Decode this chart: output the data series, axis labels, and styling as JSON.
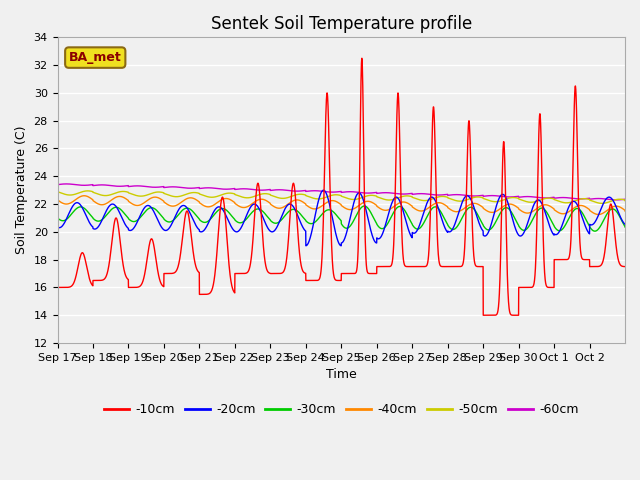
{
  "title": "Sentek Soil Temperature profile",
  "xlabel": "Time",
  "ylabel": "Soil Temperature (C)",
  "ylim": [
    12,
    34
  ],
  "yticks": [
    12,
    14,
    16,
    18,
    20,
    22,
    24,
    26,
    28,
    30,
    32,
    34
  ],
  "bg_color": "#f0f0f0",
  "legend_label": "BA_met",
  "series": [
    {
      "label": "-10cm",
      "color": "#ff0000"
    },
    {
      "label": "-20cm",
      "color": "#0000ff"
    },
    {
      "label": "-30cm",
      "color": "#00cc00"
    },
    {
      "label": "-40cm",
      "color": "#ff8800"
    },
    {
      "label": "-50cm",
      "color": "#cccc00"
    },
    {
      "label": "-60cm",
      "color": "#cc00cc"
    }
  ],
  "x_tick_labels": [
    "Sep 17",
    "Sep 18",
    "Sep 19",
    "Sep 20",
    "Sep 21",
    "Sep 22",
    "Sep 23",
    "Sep 24",
    "Sep 25",
    "Sep 26",
    "Sep 27",
    "Sep 28",
    "Sep 29",
    "Sep 30",
    "Oct 1",
    "Oct 2"
  ],
  "title_fontsize": 12,
  "axis_fontsize": 9,
  "tick_fontsize": 8
}
